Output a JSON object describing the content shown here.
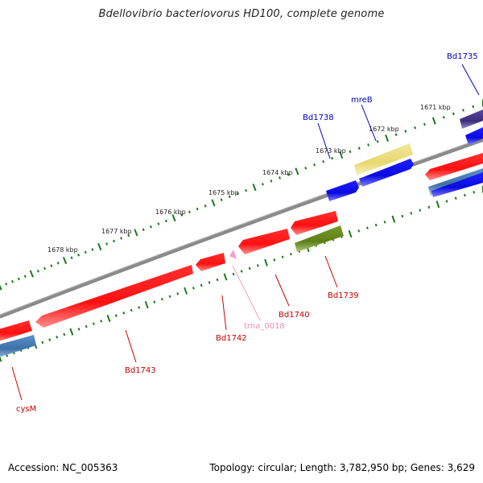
{
  "title": "Bdellovibrio bacteriovorus HD100, complete genome",
  "footer": {
    "accession": "Accession: NC_005363",
    "summary": "Topology: circular; Length: 3,782,950 bp; Genes: 3,629"
  },
  "kbp_labels": [
    "1671 kbp",
    "1672 kbp",
    "1673 kbp",
    "1674 kbp",
    "1675 kbp",
    "1676 kbp",
    "1677 kbp",
    "1678 kbp"
  ],
  "gene_labels": [
    {
      "key": "bd1735",
      "text": "Bd1735",
      "color": "#0000c8"
    },
    {
      "key": "mreb",
      "text": "mreB",
      "color": "#0000c8"
    },
    {
      "key": "bd1738",
      "text": "Bd1738",
      "color": "#0000c8"
    },
    {
      "key": "bd1739",
      "text": "Bd1739",
      "color": "#c80000"
    },
    {
      "key": "bd1740",
      "text": "Bd1740",
      "color": "#c80000"
    },
    {
      "key": "trna0018",
      "text": "trna_0018",
      "color": "#e890b8"
    },
    {
      "key": "bd1742",
      "text": "Bd1742",
      "color": "#c80000"
    },
    {
      "key": "bd1743",
      "text": "Bd1743",
      "color": "#c80000"
    },
    {
      "key": "cysm",
      "text": "cysM",
      "color": "#c80000"
    }
  ],
  "colors": {
    "backbone": "#808080",
    "tick": "#1a7a1a",
    "red": "#ff1a1a",
    "blue": "#1010f0",
    "steelblue": "#4a7fb5",
    "khaki": "#eee08a",
    "olive": "#6b8c20",
    "navy": "#4a3c8c",
    "pink": "#f0a0c0"
  }
}
